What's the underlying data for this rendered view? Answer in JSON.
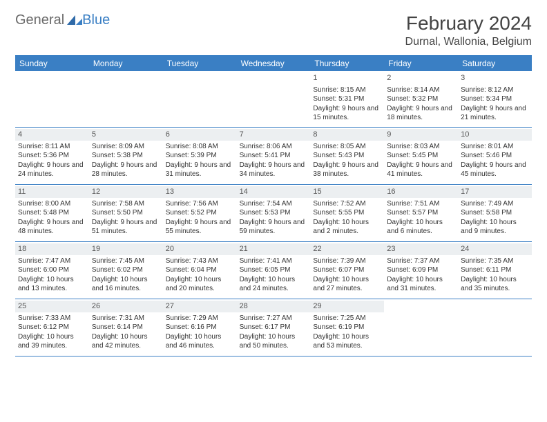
{
  "logo": {
    "general": "General",
    "blue": "Blue"
  },
  "title": "February 2024",
  "location": "Durnal, Wallonia, Belgium",
  "colors": {
    "brand": "#3a7fc4",
    "header_bg": "#3a7fc4",
    "daynum_bg": "#eceff1",
    "text": "#333333"
  },
  "day_headers": [
    "Sunday",
    "Monday",
    "Tuesday",
    "Wednesday",
    "Thursday",
    "Friday",
    "Saturday"
  ],
  "weeks": [
    [
      {
        "n": "",
        "sr": "",
        "ss": "",
        "dl": ""
      },
      {
        "n": "",
        "sr": "",
        "ss": "",
        "dl": ""
      },
      {
        "n": "",
        "sr": "",
        "ss": "",
        "dl": ""
      },
      {
        "n": "",
        "sr": "",
        "ss": "",
        "dl": ""
      },
      {
        "n": "1",
        "sr": "Sunrise: 8:15 AM",
        "ss": "Sunset: 5:31 PM",
        "dl": "Daylight: 9 hours and 15 minutes."
      },
      {
        "n": "2",
        "sr": "Sunrise: 8:14 AM",
        "ss": "Sunset: 5:32 PM",
        "dl": "Daylight: 9 hours and 18 minutes."
      },
      {
        "n": "3",
        "sr": "Sunrise: 8:12 AM",
        "ss": "Sunset: 5:34 PM",
        "dl": "Daylight: 9 hours and 21 minutes."
      }
    ],
    [
      {
        "n": "4",
        "sr": "Sunrise: 8:11 AM",
        "ss": "Sunset: 5:36 PM",
        "dl": "Daylight: 9 hours and 24 minutes."
      },
      {
        "n": "5",
        "sr": "Sunrise: 8:09 AM",
        "ss": "Sunset: 5:38 PM",
        "dl": "Daylight: 9 hours and 28 minutes."
      },
      {
        "n": "6",
        "sr": "Sunrise: 8:08 AM",
        "ss": "Sunset: 5:39 PM",
        "dl": "Daylight: 9 hours and 31 minutes."
      },
      {
        "n": "7",
        "sr": "Sunrise: 8:06 AM",
        "ss": "Sunset: 5:41 PM",
        "dl": "Daylight: 9 hours and 34 minutes."
      },
      {
        "n": "8",
        "sr": "Sunrise: 8:05 AM",
        "ss": "Sunset: 5:43 PM",
        "dl": "Daylight: 9 hours and 38 minutes."
      },
      {
        "n": "9",
        "sr": "Sunrise: 8:03 AM",
        "ss": "Sunset: 5:45 PM",
        "dl": "Daylight: 9 hours and 41 minutes."
      },
      {
        "n": "10",
        "sr": "Sunrise: 8:01 AM",
        "ss": "Sunset: 5:46 PM",
        "dl": "Daylight: 9 hours and 45 minutes."
      }
    ],
    [
      {
        "n": "11",
        "sr": "Sunrise: 8:00 AM",
        "ss": "Sunset: 5:48 PM",
        "dl": "Daylight: 9 hours and 48 minutes."
      },
      {
        "n": "12",
        "sr": "Sunrise: 7:58 AM",
        "ss": "Sunset: 5:50 PM",
        "dl": "Daylight: 9 hours and 51 minutes."
      },
      {
        "n": "13",
        "sr": "Sunrise: 7:56 AM",
        "ss": "Sunset: 5:52 PM",
        "dl": "Daylight: 9 hours and 55 minutes."
      },
      {
        "n": "14",
        "sr": "Sunrise: 7:54 AM",
        "ss": "Sunset: 5:53 PM",
        "dl": "Daylight: 9 hours and 59 minutes."
      },
      {
        "n": "15",
        "sr": "Sunrise: 7:52 AM",
        "ss": "Sunset: 5:55 PM",
        "dl": "Daylight: 10 hours and 2 minutes."
      },
      {
        "n": "16",
        "sr": "Sunrise: 7:51 AM",
        "ss": "Sunset: 5:57 PM",
        "dl": "Daylight: 10 hours and 6 minutes."
      },
      {
        "n": "17",
        "sr": "Sunrise: 7:49 AM",
        "ss": "Sunset: 5:58 PM",
        "dl": "Daylight: 10 hours and 9 minutes."
      }
    ],
    [
      {
        "n": "18",
        "sr": "Sunrise: 7:47 AM",
        "ss": "Sunset: 6:00 PM",
        "dl": "Daylight: 10 hours and 13 minutes."
      },
      {
        "n": "19",
        "sr": "Sunrise: 7:45 AM",
        "ss": "Sunset: 6:02 PM",
        "dl": "Daylight: 10 hours and 16 minutes."
      },
      {
        "n": "20",
        "sr": "Sunrise: 7:43 AM",
        "ss": "Sunset: 6:04 PM",
        "dl": "Daylight: 10 hours and 20 minutes."
      },
      {
        "n": "21",
        "sr": "Sunrise: 7:41 AM",
        "ss": "Sunset: 6:05 PM",
        "dl": "Daylight: 10 hours and 24 minutes."
      },
      {
        "n": "22",
        "sr": "Sunrise: 7:39 AM",
        "ss": "Sunset: 6:07 PM",
        "dl": "Daylight: 10 hours and 27 minutes."
      },
      {
        "n": "23",
        "sr": "Sunrise: 7:37 AM",
        "ss": "Sunset: 6:09 PM",
        "dl": "Daylight: 10 hours and 31 minutes."
      },
      {
        "n": "24",
        "sr": "Sunrise: 7:35 AM",
        "ss": "Sunset: 6:11 PM",
        "dl": "Daylight: 10 hours and 35 minutes."
      }
    ],
    [
      {
        "n": "25",
        "sr": "Sunrise: 7:33 AM",
        "ss": "Sunset: 6:12 PM",
        "dl": "Daylight: 10 hours and 39 minutes."
      },
      {
        "n": "26",
        "sr": "Sunrise: 7:31 AM",
        "ss": "Sunset: 6:14 PM",
        "dl": "Daylight: 10 hours and 42 minutes."
      },
      {
        "n": "27",
        "sr": "Sunrise: 7:29 AM",
        "ss": "Sunset: 6:16 PM",
        "dl": "Daylight: 10 hours and 46 minutes."
      },
      {
        "n": "28",
        "sr": "Sunrise: 7:27 AM",
        "ss": "Sunset: 6:17 PM",
        "dl": "Daylight: 10 hours and 50 minutes."
      },
      {
        "n": "29",
        "sr": "Sunrise: 7:25 AM",
        "ss": "Sunset: 6:19 PM",
        "dl": "Daylight: 10 hours and 53 minutes."
      },
      {
        "n": "",
        "sr": "",
        "ss": "",
        "dl": ""
      },
      {
        "n": "",
        "sr": "",
        "ss": "",
        "dl": ""
      }
    ]
  ]
}
